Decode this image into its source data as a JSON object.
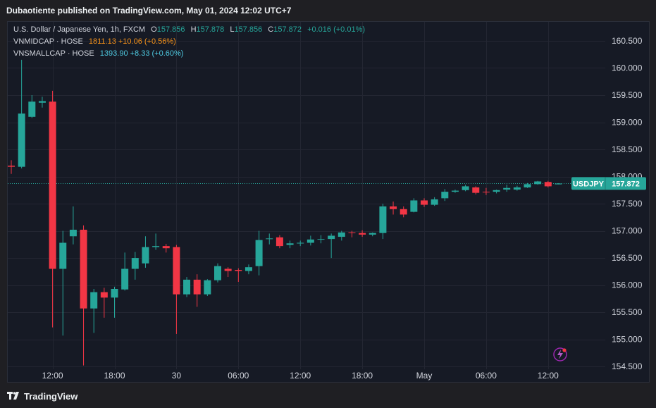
{
  "header": {
    "publish_line": "Dubaotiente published on TradingView.com, May 01, 2024 12:02 UTC+7"
  },
  "legend": {
    "symbol": "U.S. Dollar / Japanese Yen, 1h, FXCM",
    "o_label": "O",
    "o_value": "157.856",
    "h_label": "H",
    "h_value": "157.878",
    "l_label": "L",
    "l_value": "157.856",
    "c_label": "C",
    "c_value": "157.872",
    "change": "+0.016 (+0.01%)",
    "vnmid_name": "VNMIDCAP · HOSE",
    "vnmid_value": "1811.13 +10.06 (+0.56%)",
    "vnsmall_name": "VNSMALLCAP · HOSE",
    "vnsmall_value": "1393.90 +8.33 (+0.60%)"
  },
  "price_tag": {
    "symbol": "USDJPY",
    "value": "157.872"
  },
  "footer": {
    "brand": "TradingView"
  },
  "colors": {
    "up": "#26a69a",
    "down": "#f23645",
    "background": "#161a25",
    "grid": "#232632",
    "price_line": "#26a69a",
    "axis_text": "#d1d4dc"
  },
  "chart_data": {
    "type": "candlestick",
    "symbol": "USDJPY",
    "interval": "1h",
    "ylim": [
      154.45,
      160.85
    ],
    "y_ticks": [
      "154.500",
      "155.000",
      "155.500",
      "156.000",
      "156.500",
      "157.000",
      "157.500",
      "158.000",
      "158.500",
      "159.000",
      "159.500",
      "160.000",
      "160.500"
    ],
    "x_ticks": [
      {
        "label": "12:00",
        "index": 4
      },
      {
        "label": "18:00",
        "index": 10
      },
      {
        "label": "30",
        "index": 16
      },
      {
        "label": "06:00",
        "index": 22
      },
      {
        "label": "12:00",
        "index": 28
      },
      {
        "label": "18:00",
        "index": 34
      },
      {
        "label": "May",
        "index": 40
      },
      {
        "label": "06:00",
        "index": 46
      },
      {
        "label": "12:00",
        "index": 52
      }
    ],
    "last_price": 157.872,
    "candles": [
      {
        "o": 158.2,
        "h": 158.3,
        "l": 158.05,
        "c": 158.18
      },
      {
        "o": 158.18,
        "h": 160.15,
        "l": 158.15,
        "c": 159.16
      },
      {
        "o": 159.1,
        "h": 159.5,
        "l": 159.08,
        "c": 159.38
      },
      {
        "o": 159.36,
        "h": 159.47,
        "l": 159.27,
        "c": 159.39
      },
      {
        "o": 159.38,
        "h": 159.58,
        "l": 155.22,
        "c": 156.3
      },
      {
        "o": 156.3,
        "h": 157.0,
        "l": 155.07,
        "c": 156.78
      },
      {
        "o": 156.9,
        "h": 157.45,
        "l": 156.75,
        "c": 157.02
      },
      {
        "o": 157.02,
        "h": 157.1,
        "l": 154.52,
        "c": 155.57
      },
      {
        "o": 155.57,
        "h": 155.93,
        "l": 155.12,
        "c": 155.87
      },
      {
        "o": 155.87,
        "h": 155.95,
        "l": 155.4,
        "c": 155.77
      },
      {
        "o": 155.77,
        "h": 155.97,
        "l": 155.4,
        "c": 155.93
      },
      {
        "o": 155.92,
        "h": 156.6,
        "l": 155.9,
        "c": 156.3
      },
      {
        "o": 156.3,
        "h": 156.61,
        "l": 156.1,
        "c": 156.5
      },
      {
        "o": 156.4,
        "h": 156.9,
        "l": 156.32,
        "c": 156.7
      },
      {
        "o": 156.7,
        "h": 156.95,
        "l": 156.65,
        "c": 156.72
      },
      {
        "o": 156.72,
        "h": 156.76,
        "l": 156.6,
        "c": 156.68
      },
      {
        "o": 156.7,
        "h": 156.74,
        "l": 155.1,
        "c": 155.83
      },
      {
        "o": 155.83,
        "h": 156.15,
        "l": 155.78,
        "c": 156.1
      },
      {
        "o": 156.1,
        "h": 156.2,
        "l": 155.6,
        "c": 155.83
      },
      {
        "o": 155.83,
        "h": 156.11,
        "l": 155.8,
        "c": 156.09
      },
      {
        "o": 156.09,
        "h": 156.4,
        "l": 156.05,
        "c": 156.35
      },
      {
        "o": 156.3,
        "h": 156.33,
        "l": 156.15,
        "c": 156.26
      },
      {
        "o": 156.28,
        "h": 156.31,
        "l": 156.06,
        "c": 156.26
      },
      {
        "o": 156.26,
        "h": 156.38,
        "l": 156.2,
        "c": 156.33
      },
      {
        "o": 156.35,
        "h": 157.0,
        "l": 156.18,
        "c": 156.83
      },
      {
        "o": 156.85,
        "h": 156.95,
        "l": 156.75,
        "c": 156.86
      },
      {
        "o": 156.88,
        "h": 156.92,
        "l": 156.68,
        "c": 156.72
      },
      {
        "o": 156.74,
        "h": 156.82,
        "l": 156.68,
        "c": 156.77
      },
      {
        "o": 156.77,
        "h": 156.82,
        "l": 156.72,
        "c": 156.78
      },
      {
        "o": 156.78,
        "h": 156.91,
        "l": 156.73,
        "c": 156.84
      },
      {
        "o": 156.84,
        "h": 156.92,
        "l": 156.77,
        "c": 156.85
      },
      {
        "o": 156.85,
        "h": 156.95,
        "l": 156.5,
        "c": 156.91
      },
      {
        "o": 156.89,
        "h": 157.0,
        "l": 156.82,
        "c": 156.97
      },
      {
        "o": 156.97,
        "h": 157.0,
        "l": 156.88,
        "c": 156.96
      },
      {
        "o": 156.96,
        "h": 157.01,
        "l": 156.89,
        "c": 156.93
      },
      {
        "o": 156.93,
        "h": 156.97,
        "l": 156.9,
        "c": 156.96
      },
      {
        "o": 156.96,
        "h": 157.5,
        "l": 156.85,
        "c": 157.45
      },
      {
        "o": 157.45,
        "h": 157.54,
        "l": 157.3,
        "c": 157.4
      },
      {
        "o": 157.4,
        "h": 157.45,
        "l": 157.25,
        "c": 157.3
      },
      {
        "o": 157.35,
        "h": 157.6,
        "l": 157.34,
        "c": 157.56
      },
      {
        "o": 157.56,
        "h": 157.6,
        "l": 157.44,
        "c": 157.48
      },
      {
        "o": 157.48,
        "h": 157.62,
        "l": 157.46,
        "c": 157.58
      },
      {
        "o": 157.6,
        "h": 157.77,
        "l": 157.55,
        "c": 157.72
      },
      {
        "o": 157.72,
        "h": 157.76,
        "l": 157.7,
        "c": 157.74
      },
      {
        "o": 157.75,
        "h": 157.85,
        "l": 157.73,
        "c": 157.82
      },
      {
        "o": 157.8,
        "h": 157.82,
        "l": 157.67,
        "c": 157.7
      },
      {
        "o": 157.72,
        "h": 157.79,
        "l": 157.66,
        "c": 157.71
      },
      {
        "o": 157.72,
        "h": 157.76,
        "l": 157.69,
        "c": 157.75
      },
      {
        "o": 157.76,
        "h": 157.85,
        "l": 157.72,
        "c": 157.79
      },
      {
        "o": 157.76,
        "h": 157.83,
        "l": 157.74,
        "c": 157.8
      },
      {
        "o": 157.8,
        "h": 157.88,
        "l": 157.79,
        "c": 157.86
      },
      {
        "o": 157.86,
        "h": 157.92,
        "l": 157.85,
        "c": 157.91
      },
      {
        "o": 157.9,
        "h": 157.92,
        "l": 157.8,
        "c": 157.82
      },
      {
        "o": 157.856,
        "h": 157.878,
        "l": 157.856,
        "c": 157.872
      }
    ]
  }
}
